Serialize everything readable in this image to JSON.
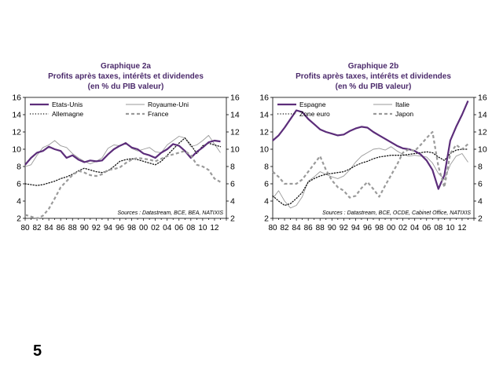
{
  "page_number": "5",
  "charts": [
    {
      "id": "a",
      "graph_label": "Graphique 2a",
      "title": "Profits après taxes, intérêts et dividendes",
      "subtitle": "(en % du PIB valeur)",
      "source": "Sources : Datastream, BCE, BEA, NATIXIS",
      "legend": [
        "Etats-Unis",
        "Royaume-Uni",
        "Allemagne",
        "France"
      ]
    },
    {
      "id": "b",
      "graph_label": "Graphique 2b",
      "title": "Profits après taxes, intérêts et dividendes",
      "subtitle": "(en % du PIB valeur)",
      "source": "Sources : Datastream, BCE, OCDE, Cabinet Office, NATIXIS",
      "legend": [
        "Espagne",
        "Italie",
        "Zone euro",
        "Japon"
      ]
    }
  ],
  "chart_data": [
    {
      "type": "line",
      "title": "Graphique 2a — Profits après taxes, intérêts et dividendes (en % du PIB valeur)",
      "xlabel": "",
      "ylabel": "",
      "xlim": [
        1980,
        2014
      ],
      "ylim": [
        2,
        16
      ],
      "yticks": [
        2,
        4,
        6,
        8,
        10,
        12,
        14,
        16
      ],
      "xtick_labels": [
        "80",
        "82",
        "84",
        "86",
        "88",
        "90",
        "92",
        "94",
        "96",
        "98",
        "00",
        "02",
        "04",
        "06",
        "08",
        "10",
        "12"
      ],
      "grid": false,
      "series": [
        {
          "name": "Etats-Unis",
          "color": "#5c2d7a",
          "style": "solid",
          "width": 2.2,
          "x": [
            1980,
            1981,
            1982,
            1983,
            1984,
            1985,
            1986,
            1987,
            1988,
            1989,
            1990,
            1991,
            1992,
            1993,
            1994,
            1995,
            1996,
            1997,
            1998,
            1999,
            2000,
            2001,
            2002,
            2003,
            2004,
            2005,
            2006,
            2007,
            2008,
            2009,
            2010,
            2011,
            2012,
            2013
          ],
          "y": [
            8.2,
            9.0,
            9.6,
            9.8,
            10.3,
            10.0,
            9.8,
            9.0,
            9.3,
            8.8,
            8.5,
            8.7,
            8.6,
            8.7,
            9.4,
            10.0,
            10.4,
            10.7,
            10.2,
            10.0,
            9.5,
            9.3,
            9.0,
            9.6,
            10.0,
            10.6,
            10.4,
            9.8,
            9.0,
            9.7,
            10.2,
            10.8,
            11.0,
            10.9
          ]
        },
        {
          "name": "Royaume-Uni",
          "color": "#9a9a9a",
          "style": "solid",
          "width": 0.9,
          "x": [
            1980,
            1981,
            1982,
            1983,
            1984,
            1985,
            1986,
            1987,
            1988,
            1989,
            1990,
            1991,
            1992,
            1993,
            1994,
            1995,
            1996,
            1997,
            1998,
            1999,
            2000,
            2001,
            2002,
            2003,
            2004,
            2005,
            2006,
            2007,
            2008,
            2009,
            2010,
            2011,
            2012,
            2013
          ],
          "y": [
            8.0,
            8.2,
            9.3,
            10.2,
            10.5,
            11.0,
            10.4,
            10.2,
            9.5,
            9.0,
            8.6,
            8.3,
            8.6,
            9.0,
            10.1,
            10.5,
            10.4,
            10.8,
            10.1,
            9.8,
            10.0,
            10.2,
            9.7,
            9.6,
            10.5,
            11.0,
            11.5,
            11.3,
            10.3,
            10.5,
            11.0,
            11.6,
            10.6,
            9.6
          ]
        },
        {
          "name": "Allemagne",
          "color": "#111111",
          "style": "dotted",
          "width": 1.3,
          "x": [
            1980,
            1981,
            1982,
            1983,
            1984,
            1985,
            1986,
            1987,
            1988,
            1989,
            1990,
            1991,
            1992,
            1993,
            1994,
            1995,
            1996,
            1997,
            1998,
            1999,
            2000,
            2001,
            2002,
            2003,
            2004,
            2005,
            2006,
            2007,
            2008,
            2009,
            2010,
            2011,
            2012,
            2013
          ],
          "y": [
            6.0,
            5.9,
            5.8,
            5.9,
            6.1,
            6.3,
            6.6,
            6.8,
            7.1,
            7.5,
            7.8,
            7.6,
            7.4,
            7.3,
            7.5,
            8.0,
            8.6,
            8.8,
            8.9,
            8.8,
            8.6,
            8.4,
            8.2,
            8.6,
            9.3,
            10.0,
            10.7,
            11.3,
            10.5,
            9.5,
            10.4,
            10.7,
            10.5,
            10.3
          ]
        },
        {
          "name": "France",
          "color": "#9a9a9a",
          "style": "dashed",
          "width": 2.2,
          "x": [
            1980,
            1981,
            1982,
            1983,
            1984,
            1985,
            1986,
            1987,
            1988,
            1989,
            1990,
            1991,
            1992,
            1993,
            1994,
            1995,
            1996,
            1997,
            1998,
            1999,
            2000,
            2001,
            2002,
            2003,
            2004,
            2005,
            2006,
            2007,
            2008,
            2009,
            2010,
            2011,
            2012,
            2013
          ],
          "y": [
            2.4,
            2.2,
            2.0,
            2.3,
            3.1,
            4.3,
            5.6,
            6.3,
            7.0,
            7.5,
            7.3,
            7.0,
            6.9,
            7.1,
            7.6,
            7.7,
            7.9,
            8.4,
            8.8,
            9.0,
            8.9,
            8.8,
            8.6,
            8.9,
            9.2,
            9.4,
            9.6,
            9.8,
            9.3,
            8.2,
            8.0,
            7.6,
            6.6,
            6.2
          ]
        }
      ]
    },
    {
      "type": "line",
      "title": "Graphique 2b — Profits après taxes, intérêts et dividendes (en % du PIB valeur)",
      "xlabel": "",
      "ylabel": "",
      "xlim": [
        1980,
        2014
      ],
      "ylim": [
        2,
        16
      ],
      "yticks": [
        2,
        4,
        6,
        8,
        10,
        12,
        14,
        16
      ],
      "xtick_labels": [
        "80",
        "82",
        "84",
        "86",
        "88",
        "90",
        "92",
        "94",
        "96",
        "98",
        "00",
        "02",
        "04",
        "06",
        "08",
        "10",
        "12"
      ],
      "grid": false,
      "series": [
        {
          "name": "Espagne",
          "color": "#5c2d7a",
          "style": "solid",
          "width": 2.2,
          "x": [
            1980,
            1981,
            1982,
            1983,
            1984,
            1985,
            1986,
            1987,
            1988,
            1989,
            1990,
            1991,
            1992,
            1993,
            1994,
            1995,
            1996,
            1997,
            1998,
            1999,
            2000,
            2001,
            2002,
            2003,
            2004,
            2005,
            2006,
            2007,
            2008,
            2009,
            2010,
            2011,
            2012,
            2013
          ],
          "y": [
            11.0,
            11.6,
            12.5,
            13.5,
            14.5,
            14.3,
            13.5,
            12.9,
            12.3,
            12.0,
            11.8,
            11.6,
            11.7,
            12.1,
            12.4,
            12.6,
            12.5,
            12.0,
            11.6,
            11.2,
            10.8,
            10.4,
            10.1,
            10.0,
            9.8,
            9.4,
            8.7,
            7.6,
            5.4,
            7.0,
            11.0,
            12.6,
            14.0,
            15.6
          ]
        },
        {
          "name": "Italie",
          "color": "#9a9a9a",
          "style": "solid",
          "width": 0.9,
          "x": [
            1980,
            1981,
            1982,
            1983,
            1984,
            1985,
            1986,
            1987,
            1988,
            1989,
            1990,
            1991,
            1992,
            1993,
            1994,
            1995,
            1996,
            1997,
            1998,
            1999,
            2000,
            2001,
            2002,
            2003,
            2004,
            2005,
            2006,
            2007,
            2008,
            2009,
            2010,
            2011,
            2012,
            2013
          ],
          "y": [
            4.3,
            5.2,
            4.0,
            3.2,
            3.5,
            4.5,
            6.3,
            6.8,
            7.4,
            7.1,
            6.8,
            6.6,
            6.9,
            7.6,
            8.5,
            9.2,
            9.6,
            10.0,
            10.1,
            9.9,
            10.3,
            9.8,
            9.4,
            9.2,
            9.3,
            9.2,
            9.1,
            8.4,
            7.2,
            6.5,
            8.2,
            9.2,
            9.5,
            8.5
          ]
        },
        {
          "name": "Zone euro",
          "color": "#111111",
          "style": "dotted",
          "width": 1.3,
          "x": [
            1980,
            1981,
            1982,
            1983,
            1984,
            1985,
            1986,
            1987,
            1988,
            1989,
            1990,
            1991,
            1992,
            1993,
            1994,
            1995,
            1996,
            1997,
            1998,
            1999,
            2000,
            2001,
            2002,
            2003,
            2004,
            2005,
            2006,
            2007,
            2008,
            2009,
            2010,
            2011,
            2012,
            2013
          ],
          "y": [
            4.6,
            4.0,
            3.5,
            3.7,
            4.3,
            5.0,
            6.2,
            6.6,
            6.9,
            7.1,
            7.2,
            7.3,
            7.4,
            7.7,
            8.1,
            8.4,
            8.6,
            8.9,
            9.1,
            9.2,
            9.3,
            9.3,
            9.3,
            9.4,
            9.5,
            9.6,
            9.7,
            9.6,
            9.1,
            8.7,
            9.5,
            9.9,
            10.0,
            10.0
          ]
        },
        {
          "name": "Japon",
          "color": "#9a9a9a",
          "style": "dashed",
          "width": 2.2,
          "x": [
            1980,
            1981,
            1982,
            1983,
            1984,
            1985,
            1986,
            1987,
            1988,
            1989,
            1990,
            1991,
            1992,
            1993,
            1994,
            1995,
            1996,
            1997,
            1998,
            1999,
            2000,
            2001,
            2002,
            2003,
            2004,
            2005,
            2006,
            2007,
            2008,
            2009,
            2010,
            2011,
            2012,
            2013
          ],
          "y": [
            7.4,
            6.8,
            6.0,
            6.0,
            6.0,
            6.5,
            7.4,
            8.3,
            9.2,
            7.6,
            6.4,
            5.6,
            5.2,
            4.4,
            4.6,
            5.5,
            6.2,
            5.4,
            4.5,
            5.8,
            7.0,
            8.2,
            9.6,
            10.0,
            9.8,
            10.5,
            11.3,
            12.0,
            8.0,
            5.6,
            9.5,
            10.5,
            10.0,
            10.6
          ]
        }
      ]
    }
  ]
}
